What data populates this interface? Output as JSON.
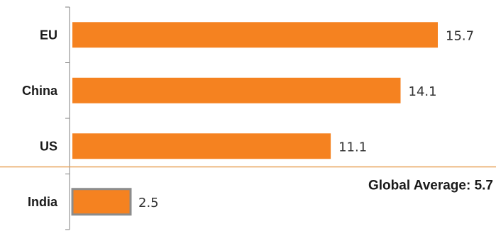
{
  "chart_data": {
    "type": "bar",
    "orientation": "horizontal",
    "categories": [
      "EU",
      "China",
      "US",
      "India"
    ],
    "values": [
      15.7,
      14.1,
      11.1,
      2.5
    ],
    "value_labels": [
      "15.7",
      "14.1",
      "11.1",
      "2.5"
    ],
    "title": "",
    "xlabel": "",
    "ylabel": "",
    "xlim": [
      0,
      17.5
    ],
    "grid": false,
    "reference_line": {
      "label": "Global Average: 5.7",
      "value": 5.7
    },
    "highlighted_category": "India",
    "colors": {
      "bar": "#f58220",
      "reference_line": "#e8a25a",
      "highlight_border": "#8c8c8c",
      "axis": "#7f7f7f"
    }
  }
}
